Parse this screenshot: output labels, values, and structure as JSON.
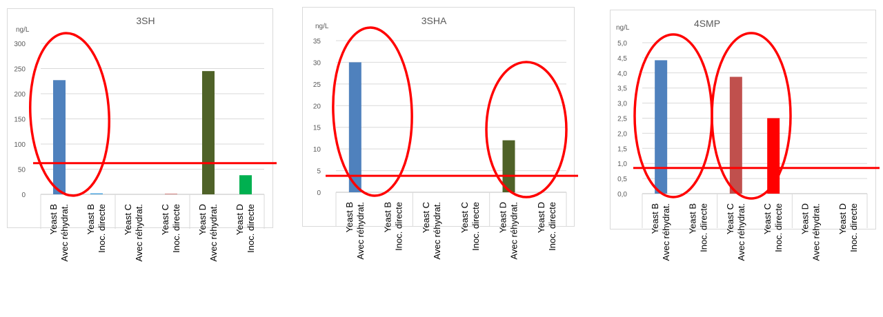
{
  "chart_data": [
    {
      "type": "bar",
      "title": "3SH",
      "ylabel": "ng/L",
      "ylim": [
        0,
        300
      ],
      "yticks": [
        "0",
        "50",
        "100",
        "150",
        "200",
        "250",
        "300"
      ],
      "categories": [
        [
          "Yeast B",
          "Avec réhydrat."
        ],
        [
          "Yeast B",
          "Inoc. directe"
        ],
        [
          "Yeast C",
          "Avec réhydrat."
        ],
        [
          "Yeast C",
          "Inoc. directe"
        ],
        [
          "Yeast D",
          "Avec réhydrat."
        ],
        [
          "Yeast D",
          "Inoc. directe"
        ]
      ],
      "values": [
        227,
        2,
        0,
        1,
        245,
        38
      ],
      "bar_colors": [
        "#4f81bd",
        "#4aa3df",
        "#c0504d",
        "#c0504d",
        "#4f6228",
        "#00b050"
      ],
      "threshold": 62,
      "annotation_color": "#ff0000"
    },
    {
      "type": "bar",
      "title": "3SHA",
      "ylabel": "ng/L",
      "ylim": [
        0,
        35
      ],
      "yticks": [
        "0",
        "5",
        "10",
        "15",
        "20",
        "25",
        "30",
        "35"
      ],
      "categories": [
        [
          "Yeast B",
          "Avec réhydrat."
        ],
        [
          "Yeast B",
          "Inoc. directe"
        ],
        [
          "Yeast C",
          "Avec réhydrat."
        ],
        [
          "Yeast C",
          "Inoc. directe"
        ],
        [
          "Yeast D",
          "Avec réhydrat."
        ],
        [
          "Yeast D",
          "Inoc. directe"
        ]
      ],
      "values": [
        30,
        0,
        0,
        0,
        12,
        0
      ],
      "bar_colors": [
        "#4f81bd",
        "#4aa3df",
        "#c0504d",
        "#c0504d",
        "#4f6228",
        "#00b050"
      ],
      "threshold": 3.8,
      "annotation_color": "#ff0000"
    },
    {
      "type": "bar",
      "title": "4SMP",
      "ylabel": "ng/L",
      "ylim": [
        0,
        5
      ],
      "yticks": [
        "0,0",
        "0,5",
        "1,0",
        "1,5",
        "2,0",
        "2,5",
        "3,0",
        "3,5",
        "4,0",
        "4,5",
        "5,0"
      ],
      "categories": [
        [
          "Yeast B",
          "Avec réhydrat."
        ],
        [
          "Yeast B",
          "Inoc. directe"
        ],
        [
          "Yeast C",
          "Avec réhydrat."
        ],
        [
          "Yeast C",
          "Inoc. directe"
        ],
        [
          "Yeast D",
          "Avec réhydrat."
        ],
        [
          "Yeast D",
          "Inoc. directe"
        ]
      ],
      "values": [
        4.42,
        0,
        3.87,
        2.5,
        0,
        0
      ],
      "bar_colors": [
        "#4f81bd",
        "#4aa3df",
        "#c0504d",
        "#ff0000",
        "#4f6228",
        "#00b050"
      ],
      "threshold": 0.85,
      "annotation_color": "#ff0000"
    }
  ]
}
